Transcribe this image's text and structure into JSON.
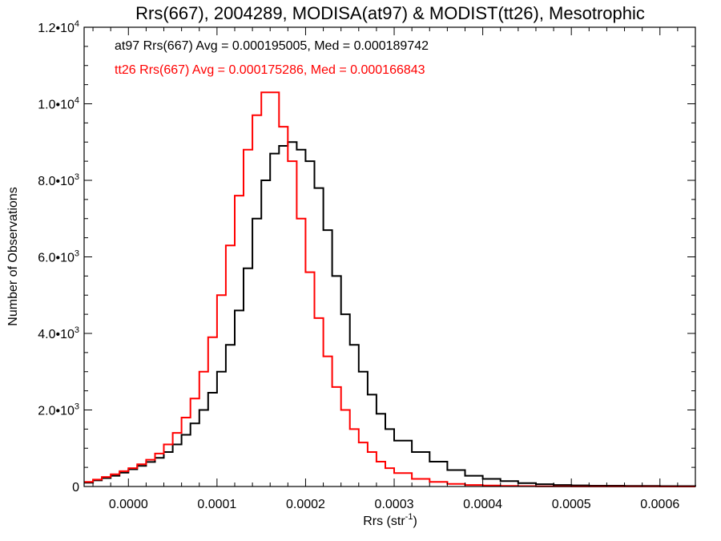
{
  "chart_data": {
    "type": "line",
    "title": "Rrs(667), 2004289, MODISA(at97) & MODIST(tt26), Mesotrophic",
    "xlabel": "Rrs (str",
    "xlabel_sup": "-1",
    "xlabel_close": ")",
    "ylabel": "Number of Observations",
    "xlim": [
      -5e-05,
      0.00064
    ],
    "ylim": [
      0,
      12000
    ],
    "grid": false,
    "step": true,
    "x_ticks": [
      {
        "v": 0.0,
        "label": "0.0000"
      },
      {
        "v": 0.0001,
        "label": "0.0001"
      },
      {
        "v": 0.0002,
        "label": "0.0002"
      },
      {
        "v": 0.0003,
        "label": "0.0003"
      },
      {
        "v": 0.0004,
        "label": "0.0004"
      },
      {
        "v": 0.0005,
        "label": "0.0005"
      },
      {
        "v": 0.0006,
        "label": "0.0006"
      }
    ],
    "y_ticks": [
      {
        "v": 0,
        "mant": "0",
        "exp": ""
      },
      {
        "v": 2000,
        "mant": "2.0•10",
        "exp": "3"
      },
      {
        "v": 4000,
        "mant": "4.0•10",
        "exp": "3"
      },
      {
        "v": 6000,
        "mant": "6.0•10",
        "exp": "3"
      },
      {
        "v": 8000,
        "mant": "8.0•10",
        "exp": "3"
      },
      {
        "v": 10000,
        "mant": "1.0•10",
        "exp": "4"
      },
      {
        "v": 12000,
        "mant": "1.2•10",
        "exp": "4"
      }
    ],
    "annotations": [
      {
        "text": "at97 Rrs(667) Avg = 0.000195005, Med = 0.000189742",
        "color": "#000000"
      },
      {
        "text": "tt26 Rrs(667) Avg = 0.000175286, Med = 0.000166843",
        "color": "#ff0000"
      }
    ],
    "series": [
      {
        "color": "#000000",
        "x": [
          -5e-05,
          -4e-05,
          -3e-05,
          -2e-05,
          -1e-05,
          0.0,
          1e-05,
          2e-05,
          3e-05,
          4e-05,
          5e-05,
          6e-05,
          7e-05,
          8e-05,
          9e-05,
          0.0001,
          0.00011,
          0.00012,
          0.00013,
          0.00014,
          0.00015,
          0.00016,
          0.00017,
          0.00018,
          0.00019,
          0.0002,
          0.00021,
          0.00022,
          0.00023,
          0.00024,
          0.00025,
          0.00026,
          0.00027,
          0.00028,
          0.00029,
          0.0003,
          0.00032,
          0.00034,
          0.00036,
          0.00038,
          0.0004,
          0.00042,
          0.00044,
          0.00046,
          0.00048,
          0.0005,
          0.00052,
          0.00056,
          0.0006,
          0.00064
        ],
        "y": [
          100,
          160,
          220,
          280,
          360,
          450,
          540,
          640,
          750,
          900,
          1100,
          1350,
          1650,
          2000,
          2450,
          3000,
          3700,
          4600,
          5700,
          7000,
          8000,
          8700,
          8900,
          9000,
          8800,
          8500,
          7800,
          6700,
          5500,
          4500,
          3700,
          3000,
          2400,
          1900,
          1500,
          1200,
          900,
          650,
          430,
          280,
          200,
          140,
          90,
          60,
          40,
          30,
          20,
          15,
          10,
          5
        ]
      },
      {
        "color": "#ff0000",
        "x": [
          -5e-05,
          -4e-05,
          -3e-05,
          -2e-05,
          -1e-05,
          0.0,
          1e-05,
          2e-05,
          3e-05,
          4e-05,
          5e-05,
          6e-05,
          7e-05,
          8e-05,
          9e-05,
          0.0001,
          0.00011,
          0.00012,
          0.00013,
          0.00014,
          0.00015,
          0.00016,
          0.00017,
          0.00018,
          0.00019,
          0.0002,
          0.00021,
          0.00022,
          0.00023,
          0.00024,
          0.00025,
          0.00026,
          0.00027,
          0.00028,
          0.00029,
          0.0003,
          0.00032,
          0.00034,
          0.00036,
          0.00038,
          0.0004,
          0.00042,
          0.00044,
          0.00046,
          0.00048,
          0.0005,
          0.00052,
          0.00056,
          0.0006,
          0.00064
        ],
        "y": [
          120,
          180,
          250,
          320,
          400,
          480,
          580,
          700,
          860,
          1100,
          1400,
          1800,
          2300,
          3000,
          3900,
          5000,
          6300,
          7600,
          8800,
          9700,
          10300,
          10300,
          9400,
          8500,
          7000,
          5600,
          4400,
          3400,
          2600,
          2000,
          1500,
          1150,
          900,
          650,
          480,
          350,
          200,
          120,
          70,
          40,
          25,
          15,
          10,
          5,
          5,
          3,
          2,
          2,
          1,
          1
        ]
      }
    ]
  }
}
